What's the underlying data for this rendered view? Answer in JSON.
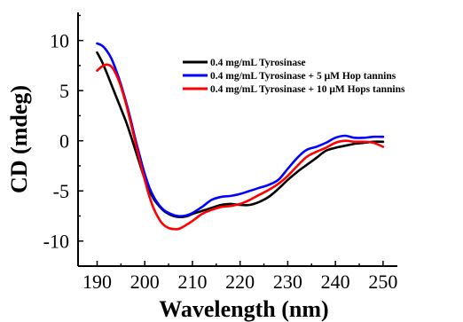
{
  "chart_data": {
    "type": "line",
    "title": "",
    "xlabel": "Wavelength (nm)",
    "ylabel": "CD (mdeg)",
    "xlim": [
      186,
      253
    ],
    "ylim": [
      -12.5,
      12.8
    ],
    "xticks": [
      190,
      200,
      210,
      220,
      230,
      240,
      250
    ],
    "yticks": [
      -10,
      -5,
      0,
      5,
      10
    ],
    "grid": false,
    "legend_position": "top-right",
    "series": [
      {
        "name": "0.4 mg/mL Tyrosinase",
        "color": "#000000",
        "x": [
          190,
          191,
          192,
          193,
          194,
          195,
          196,
          197,
          198,
          199,
          200,
          201,
          202,
          203,
          204,
          205,
          206,
          207,
          208,
          209,
          210,
          212,
          214,
          216,
          218,
          220,
          222,
          224,
          226,
          228,
          230,
          232,
          234,
          236,
          238,
          240,
          242,
          244,
          246,
          248,
          250
        ],
        "y": [
          8.8,
          7.9,
          6.8,
          5.6,
          4.4,
          3.2,
          2.0,
          0.6,
          -0.9,
          -2.4,
          -3.8,
          -5.0,
          -5.9,
          -6.5,
          -7.0,
          -7.3,
          -7.5,
          -7.6,
          -7.6,
          -7.5,
          -7.3,
          -7.0,
          -6.7,
          -6.4,
          -6.3,
          -6.4,
          -6.4,
          -6.1,
          -5.6,
          -4.8,
          -3.9,
          -3.1,
          -2.4,
          -1.7,
          -1.0,
          -0.7,
          -0.5,
          -0.3,
          -0.2,
          -0.1,
          -0.1
        ]
      },
      {
        "name": "0.4 mg/mL Tyrosinase + 5 μM Hop tannins",
        "color": "#0000ff",
        "x": [
          190,
          191,
          192,
          193,
          194,
          195,
          196,
          197,
          198,
          199,
          200,
          201,
          202,
          203,
          204,
          205,
          206,
          207,
          208,
          209,
          210,
          212,
          214,
          216,
          218,
          220,
          222,
          224,
          226,
          228,
          230,
          232,
          234,
          236,
          238,
          240,
          242,
          244,
          246,
          248,
          250
        ],
        "y": [
          9.7,
          9.5,
          9.0,
          8.2,
          7.0,
          5.6,
          4.0,
          2.2,
          0.2,
          -1.6,
          -3.3,
          -4.7,
          -5.7,
          -6.4,
          -6.9,
          -7.2,
          -7.4,
          -7.5,
          -7.5,
          -7.4,
          -7.2,
          -6.6,
          -5.9,
          -5.6,
          -5.5,
          -5.3,
          -5.0,
          -4.7,
          -4.4,
          -3.9,
          -2.8,
          -1.7,
          -0.9,
          -0.6,
          -0.2,
          0.3,
          0.5,
          0.3,
          0.3,
          0.4,
          0.4
        ]
      },
      {
        "name": "0.4 mg/mL Tyrosinase + 10 μM Hops tannins",
        "color": "#ff0000",
        "x": [
          190,
          191,
          192,
          193,
          194,
          195,
          196,
          197,
          198,
          199,
          200,
          201,
          202,
          203,
          204,
          205,
          206,
          207,
          208,
          209,
          210,
          212,
          214,
          216,
          218,
          220,
          222,
          224,
          226,
          228,
          230,
          232,
          234,
          236,
          238,
          240,
          242,
          244,
          246,
          248,
          250
        ],
        "y": [
          7.0,
          7.4,
          7.6,
          7.4,
          6.6,
          5.4,
          3.8,
          1.9,
          -0.1,
          -2.1,
          -3.9,
          -5.6,
          -6.9,
          -7.8,
          -8.4,
          -8.7,
          -8.8,
          -8.8,
          -8.6,
          -8.3,
          -8.0,
          -7.3,
          -6.9,
          -6.6,
          -6.5,
          -6.3,
          -5.9,
          -5.4,
          -4.9,
          -4.3,
          -3.5,
          -2.5,
          -1.6,
          -1.1,
          -0.7,
          -0.2,
          0.0,
          -0.1,
          -0.1,
          -0.2,
          -0.6
        ]
      }
    ]
  }
}
